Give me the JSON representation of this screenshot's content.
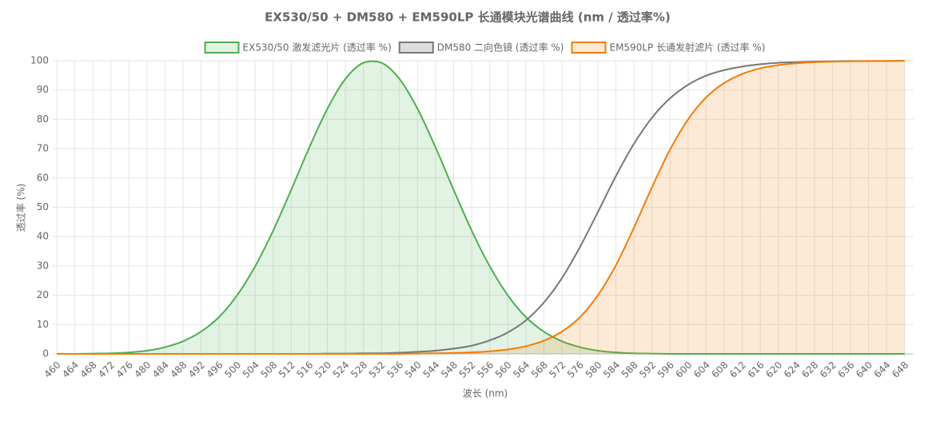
{
  "chart_data": {
    "type": "line",
    "title": "EX530/50 + DM580 + EM590LP 长通模块光谱曲线 (nm / 透过率%)",
    "x_label": "波长 (nm)",
    "y_label": "透过率 (%)",
    "x": [
      460,
      464,
      468,
      472,
      476,
      480,
      484,
      488,
      492,
      496,
      500,
      504,
      508,
      512,
      516,
      520,
      524,
      528,
      532,
      536,
      540,
      544,
      548,
      552,
      556,
      560,
      564,
      568,
      572,
      576,
      580,
      584,
      588,
      592,
      596,
      600,
      604,
      608,
      612,
      616,
      620,
      624,
      628,
      632,
      636,
      640,
      644,
      648
    ],
    "series": [
      {
        "name": "EX530/50 激发滤光片 (透过率 %)",
        "color": "#4caf50",
        "fill": true,
        "values": [
          0.0,
          0.0,
          0.1,
          0.2,
          0.5,
          1.1,
          2.3,
          4.3,
          7.6,
          12.6,
          20.0,
          29.9,
          42.1,
          56.0,
          70.4,
          83.6,
          93.8,
          99.3,
          99.3,
          93.8,
          83.6,
          70.4,
          56.0,
          42.1,
          29.9,
          20.0,
          12.6,
          7.6,
          4.3,
          2.3,
          1.1,
          0.5,
          0.2,
          0.1,
          0.0,
          0.0,
          0.0,
          0.0,
          0.0,
          0.0,
          0.0,
          0.0,
          0.0,
          0.0,
          0.0,
          0.0,
          0.0,
          0.0
        ]
      },
      {
        "name": "DM580 二向色镜 (透过率 %)",
        "color": "#777777",
        "fill": false,
        "values": [
          0.0,
          0.0,
          0.0,
          0.0,
          0.0,
          0.0,
          0.0,
          0.0,
          0.0,
          0.0,
          0.0,
          0.0,
          0.0,
          0.0,
          0.0,
          0.1,
          0.1,
          0.2,
          0.2,
          0.4,
          0.7,
          1.1,
          1.8,
          2.8,
          4.6,
          7.3,
          11.4,
          17.5,
          25.8,
          36.4,
          48.4,
          60.7,
          71.7,
          80.6,
          87.2,
          91.8,
          94.9,
          96.8,
          98.0,
          98.8,
          99.3,
          99.5,
          99.7,
          99.8,
          99.9,
          99.9,
          99.9,
          100.0
        ]
      },
      {
        "name": "EM590LP 长通发射滤片 (透过率 %)",
        "color": "#f57c00",
        "fill": true,
        "values": [
          0.0,
          0.0,
          0.0,
          0.0,
          0.0,
          0.0,
          0.0,
          0.0,
          0.0,
          0.0,
          0.0,
          0.0,
          0.0,
          0.0,
          0.0,
          0.0,
          0.0,
          0.0,
          0.0,
          0.0,
          0.1,
          0.2,
          0.3,
          0.5,
          0.9,
          1.5,
          2.6,
          4.5,
          7.6,
          12.5,
          20.0,
          30.3,
          43.1,
          56.9,
          69.7,
          80.0,
          87.5,
          92.4,
          95.5,
          97.4,
          98.5,
          99.1,
          99.5,
          99.7,
          99.8,
          99.9,
          99.9,
          100.0
        ]
      }
    ],
    "xlim": [
      460,
      650
    ],
    "xticks": [
      460,
      464,
      468,
      472,
      476,
      480,
      484,
      488,
      492,
      496,
      500,
      504,
      508,
      512,
      516,
      520,
      524,
      528,
      532,
      536,
      540,
      544,
      548,
      552,
      556,
      560,
      564,
      568,
      572,
      576,
      580,
      584,
      588,
      592,
      596,
      600,
      604,
      608,
      612,
      616,
      620,
      624,
      628,
      632,
      636,
      640,
      644,
      648
    ],
    "ylim": [
      0,
      100
    ],
    "yticks": [
      0,
      10,
      20,
      30,
      40,
      50,
      60,
      70,
      80,
      90,
      100
    ],
    "grid": true,
    "legend": "top"
  }
}
